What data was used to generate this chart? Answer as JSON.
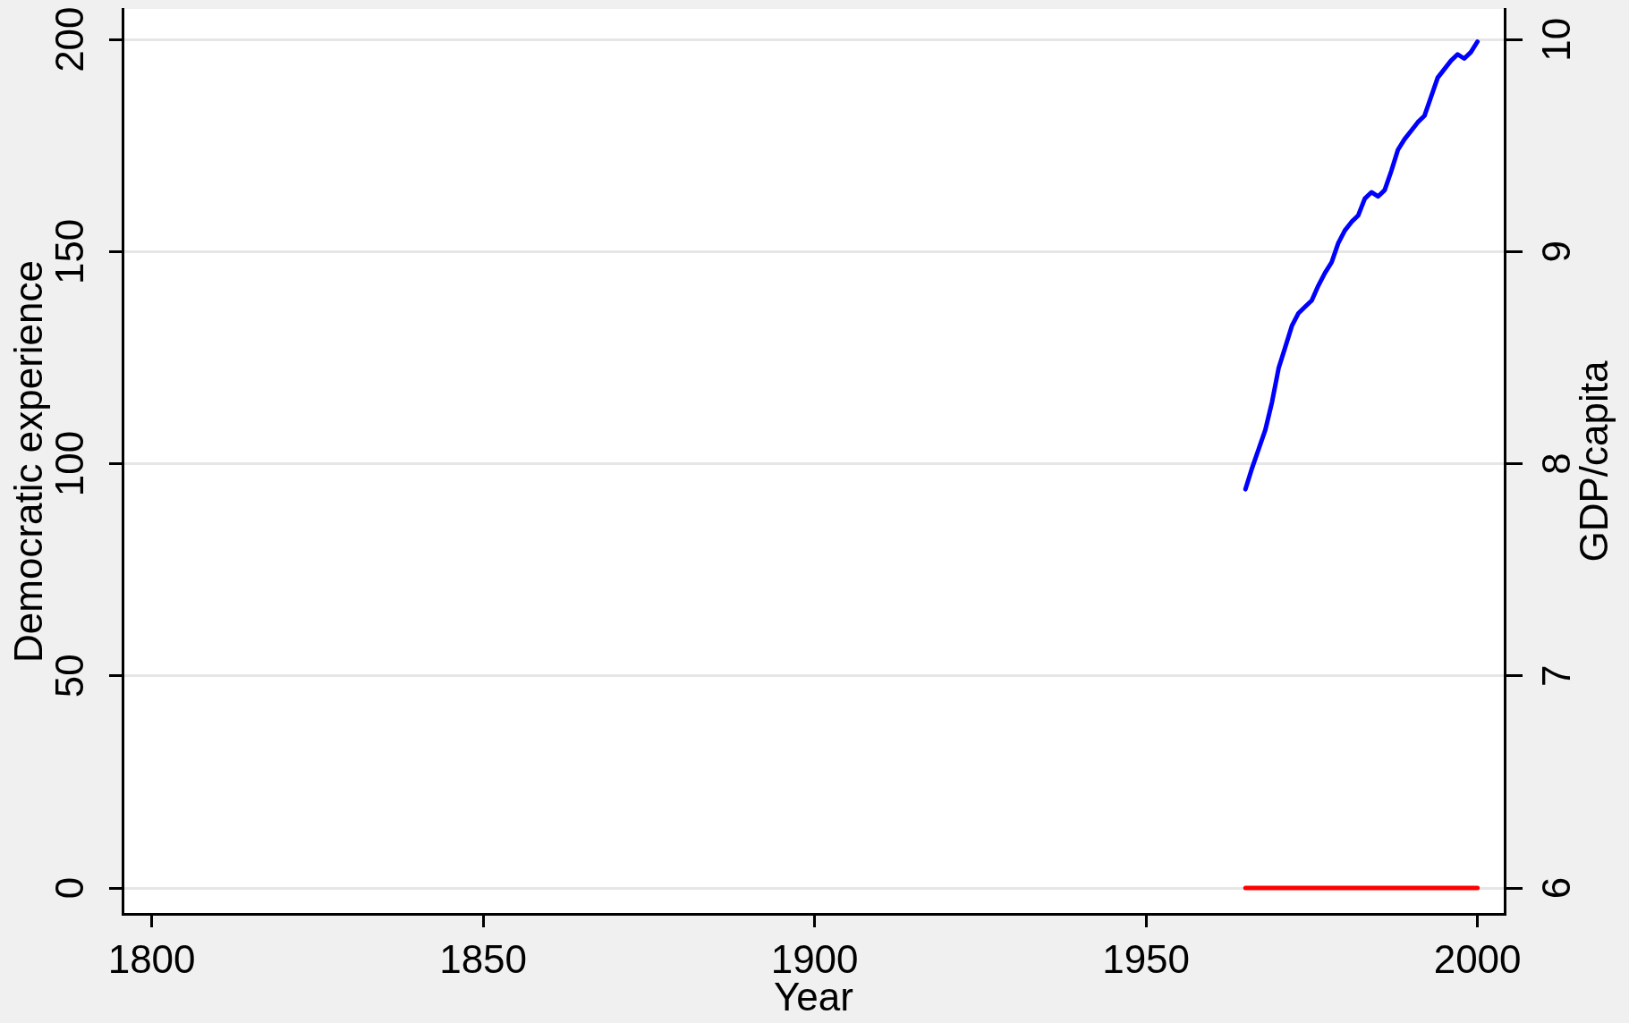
{
  "chart_data": {
    "type": "line",
    "xlabel": "Year",
    "ylabel": "Democratic experience",
    "y2label": "GDP/capita",
    "x": [
      1965,
      1966,
      1967,
      1968,
      1969,
      1970,
      1971,
      1972,
      1973,
      1974,
      1975,
      1976,
      1977,
      1978,
      1979,
      1980,
      1981,
      1982,
      1983,
      1984,
      1985,
      1986,
      1987,
      1988,
      1989,
      1990,
      1991,
      1992,
      1993,
      1994,
      1995,
      1996,
      1997,
      1998,
      1999,
      2000
    ],
    "series": [
      {
        "color": "#ff0000",
        "values": [
          0,
          0,
          0,
          0,
          0,
          0,
          0,
          0,
          0,
          0,
          0,
          0,
          0,
          0,
          0,
          0,
          0,
          0,
          0,
          0,
          0,
          0,
          0,
          0,
          0,
          0,
          0,
          0,
          0,
          0,
          0,
          0,
          0,
          0,
          0,
          0
        ]
      },
      {
        "color": "#0000ff",
        "axis": "y2",
        "values": [
          7.88,
          7.98,
          8.07,
          8.16,
          8.29,
          8.45,
          8.55,
          8.65,
          8.71,
          8.74,
          8.77,
          8.84,
          8.9,
          8.95,
          9.04,
          9.1,
          9.14,
          9.17,
          9.25,
          9.28,
          9.26,
          9.29,
          9.38,
          9.48,
          9.53,
          9.57,
          9.61,
          9.64,
          9.73,
          9.82,
          9.86,
          9.9,
          9.93,
          9.91,
          9.94,
          9.99
        ]
      }
    ],
    "xlim": [
      1795.6,
      2004.1
    ],
    "xticks": [
      1800,
      1850,
      1900,
      1950,
      2000
    ],
    "ylim": [
      -6.1,
      207.2
    ],
    "yticks": [
      0,
      50,
      100,
      150,
      200
    ],
    "y2lim": [
      5.878,
      10.144
    ],
    "y2ticks": [
      6,
      7,
      8,
      9,
      10
    ],
    "grid": "y"
  }
}
